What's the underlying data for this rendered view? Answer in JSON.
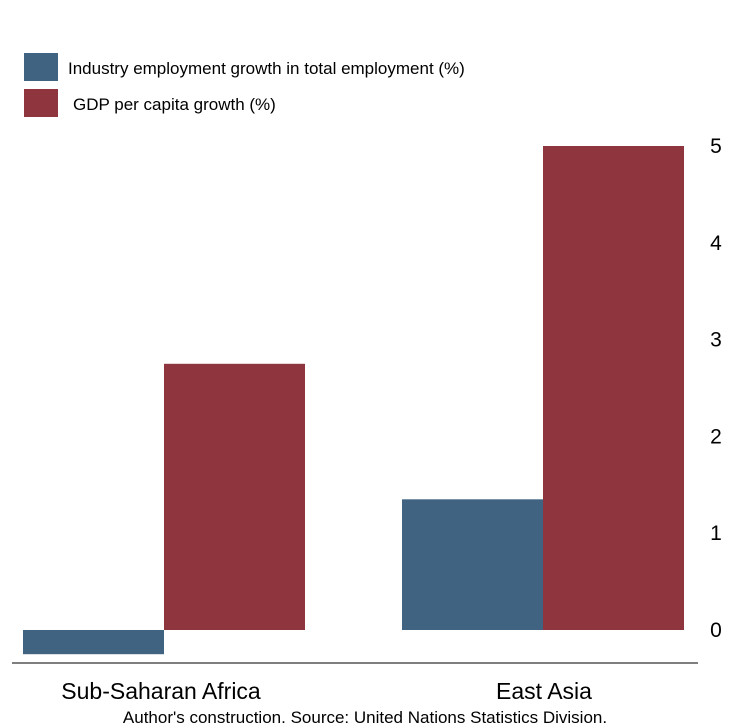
{
  "chart_data": {
    "type": "bar",
    "categories": [
      "Sub-Saharan Africa",
      "East Asia"
    ],
    "series": [
      {
        "name": "Industry employment growth in total employment (%)",
        "color": "#3f6380",
        "values": [
          -0.25,
          1.35
        ]
      },
      {
        "name": "GDP per capita growth (%)",
        "color": "#8e353e",
        "values": [
          2.75,
          5.0
        ]
      }
    ],
    "ylim": [
      -0.3,
      5.3
    ],
    "yticks": [
      0,
      1,
      2,
      3,
      4,
      5
    ],
    "ytick_labels": [
      "0",
      "1",
      "2",
      "3",
      "4",
      "5"
    ],
    "y_axis_position": "right",
    "legend_placement": "top-left",
    "grid": false,
    "source_note": "Author's construction. Source: United Nations Statistics Division."
  }
}
